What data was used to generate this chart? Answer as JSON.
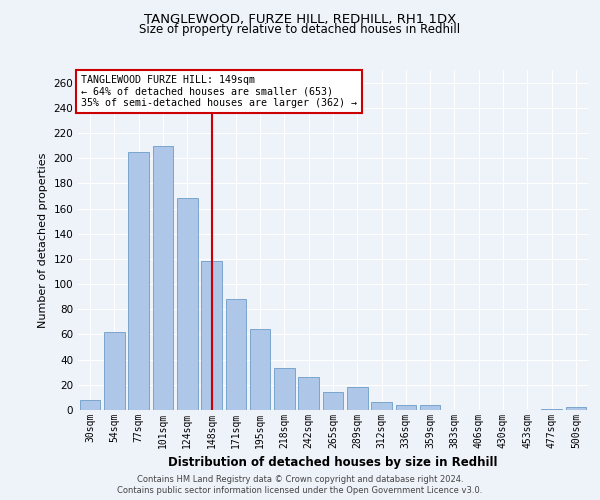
{
  "title1": "TANGLEWOOD, FURZE HILL, REDHILL, RH1 1DX",
  "title2": "Size of property relative to detached houses in Redhill",
  "xlabel": "Distribution of detached houses by size in Redhill",
  "ylabel": "Number of detached properties",
  "categories": [
    "30sqm",
    "54sqm",
    "77sqm",
    "101sqm",
    "124sqm",
    "148sqm",
    "171sqm",
    "195sqm",
    "218sqm",
    "242sqm",
    "265sqm",
    "289sqm",
    "312sqm",
    "336sqm",
    "359sqm",
    "383sqm",
    "406sqm",
    "430sqm",
    "453sqm",
    "477sqm",
    "500sqm"
  ],
  "values": [
    8,
    62,
    205,
    210,
    168,
    118,
    88,
    64,
    33,
    26,
    14,
    18,
    6,
    4,
    4,
    0,
    0,
    0,
    0,
    1,
    2
  ],
  "bar_color": "#aec6e8",
  "bar_edge_color": "#5a8fc0",
  "vline_x": 5.0,
  "vline_color": "#cc0000",
  "ylim": [
    0,
    270
  ],
  "yticks": [
    0,
    20,
    40,
    60,
    80,
    100,
    120,
    140,
    160,
    180,
    200,
    220,
    240,
    260
  ],
  "annotation_title": "TANGLEWOOD FURZE HILL: 149sqm",
  "annotation_line1": "← 64% of detached houses are smaller (653)",
  "annotation_line2": "35% of semi-detached houses are larger (362) →",
  "annotation_box_color": "#ffffff",
  "annotation_box_edge": "#cc0000",
  "footer1": "Contains HM Land Registry data © Crown copyright and database right 2024.",
  "footer2": "Contains public sector information licensed under the Open Government Licence v3.0.",
  "background_color": "#eef2f9",
  "grid_color": "#ffffff",
  "title1_fontsize": 9.5,
  "title2_fontsize": 8.5
}
